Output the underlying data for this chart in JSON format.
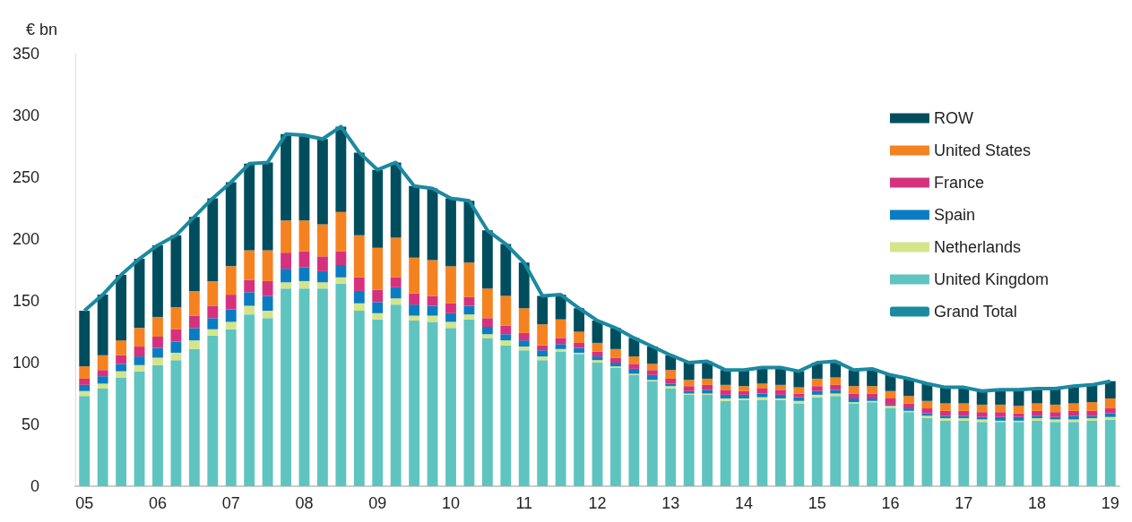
{
  "chart_data": {
    "type": "bar",
    "stacked": true,
    "ylabel": "€ bn",
    "ylim": [
      0,
      350
    ],
    "yticks": [
      0,
      50,
      100,
      150,
      200,
      250,
      300,
      350
    ],
    "grid": false,
    "legend": "right",
    "marker": "none",
    "categories": [
      "05",
      null,
      null,
      null,
      "06",
      null,
      null,
      null,
      "07",
      null,
      null,
      null,
      "08",
      null,
      null,
      null,
      "09",
      null,
      null,
      null,
      "10",
      null,
      null,
      null,
      "11",
      null,
      null,
      null,
      "12",
      null,
      null,
      null,
      "13",
      null,
      null,
      null,
      "14",
      null,
      null,
      null,
      "15",
      null,
      null,
      null,
      "16",
      null,
      null,
      null,
      "17",
      null,
      null,
      null,
      "18",
      null,
      null,
      null,
      "19"
    ],
    "series": [
      {
        "name": "United Kingdom",
        "color": "#5fc4c0",
        "values": [
          73,
          79,
          88,
          93,
          98,
          102,
          111,
          122,
          127,
          139,
          136,
          160,
          160,
          160,
          164,
          142,
          135,
          147,
          134,
          133,
          128,
          135,
          120,
          114,
          110,
          102,
          109,
          107,
          100,
          96,
          90,
          85,
          79,
          74,
          74,
          69,
          70,
          70,
          70,
          67,
          72,
          73,
          67,
          68,
          63,
          60,
          55,
          53,
          53,
          52,
          52,
          52,
          53,
          52,
          52,
          53,
          54
        ]
      },
      {
        "name": "Netherlands",
        "color": "#d4e48a",
        "values": [
          4,
          4,
          5,
          5,
          6,
          6,
          7,
          5,
          6,
          7,
          6,
          5,
          6,
          5,
          5,
          6,
          5,
          5,
          4,
          5,
          5,
          4,
          3,
          4,
          3,
          3,
          2,
          1,
          2,
          1,
          1,
          1,
          2,
          1,
          1,
          2,
          1,
          2,
          1,
          2,
          2,
          2,
          1,
          1,
          2,
          1,
          2,
          2,
          2,
          2,
          1,
          1,
          2,
          2,
          2,
          2,
          2
        ]
      },
      {
        "name": "Spain",
        "color": "#0a7dc2",
        "values": [
          5,
          6,
          6,
          7,
          8,
          9,
          10,
          9,
          10,
          11,
          12,
          11,
          11,
          9,
          10,
          10,
          9,
          9,
          9,
          8,
          7,
          7,
          6,
          5,
          5,
          5,
          4,
          4,
          3,
          3,
          4,
          4,
          2,
          2,
          3,
          3,
          3,
          3,
          3,
          3,
          3,
          3,
          3,
          2,
          1,
          2,
          2,
          2,
          2,
          2,
          3,
          3,
          2,
          2,
          3,
          2,
          3
        ]
      },
      {
        "name": "France",
        "color": "#d6317f",
        "values": [
          5,
          5,
          7,
          8,
          9,
          10,
          10,
          10,
          12,
          10,
          12,
          13,
          13,
          12,
          11,
          11,
          10,
          8,
          9,
          8,
          8,
          7,
          7,
          7,
          6,
          4,
          5,
          4,
          4,
          4,
          4,
          4,
          4,
          4,
          4,
          4,
          3,
          4,
          4,
          3,
          4,
          4,
          4,
          4,
          5,
          4,
          4,
          4,
          4,
          4,
          4,
          3,
          4,
          4,
          4,
          4,
          4
        ]
      },
      {
        "name": "United States",
        "color": "#f58220",
        "values": [
          10,
          12,
          12,
          15,
          16,
          18,
          20,
          20,
          23,
          24,
          25,
          26,
          25,
          26,
          32,
          34,
          34,
          32,
          29,
          29,
          30,
          28,
          24,
          24,
          20,
          17,
          15,
          9,
          7,
          7,
          6,
          5,
          7,
          5,
          5,
          4,
          4,
          4,
          4,
          5,
          6,
          6,
          6,
          6,
          6,
          6,
          6,
          6,
          6,
          6,
          6,
          6,
          6,
          6,
          6,
          7,
          8
        ]
      },
      {
        "name": "ROW",
        "color": "#004d5e",
        "values": [
          45,
          49,
          53,
          56,
          58,
          58,
          60,
          67,
          68,
          70,
          71,
          70,
          69,
          69,
          69,
          67,
          63,
          61,
          58,
          58,
          55,
          50,
          47,
          42,
          37,
          23,
          20,
          19,
          18,
          17,
          15,
          14,
          12,
          14,
          14,
          12,
          13,
          13,
          14,
          13,
          13,
          13,
          13,
          14,
          13,
          14,
          14,
          13,
          13,
          11,
          12,
          13,
          12,
          13,
          14,
          14,
          14
        ]
      },
      {
        "name": "Grand Total",
        "type": "line",
        "color": "#1a8aa0",
        "values": [
          142,
          155,
          171,
          184,
          195,
          203,
          218,
          233,
          246,
          261,
          262,
          285,
          284,
          281,
          291,
          270,
          256,
          262,
          243,
          241,
          233,
          231,
          207,
          196,
          181,
          154,
          155,
          144,
          134,
          128,
          120,
          113,
          106,
          100,
          101,
          94,
          94,
          96,
          96,
          93,
          100,
          101,
          94,
          95,
          90,
          87,
          83,
          80,
          80,
          77,
          78,
          78,
          79,
          79,
          81,
          82,
          85
        ]
      }
    ]
  }
}
